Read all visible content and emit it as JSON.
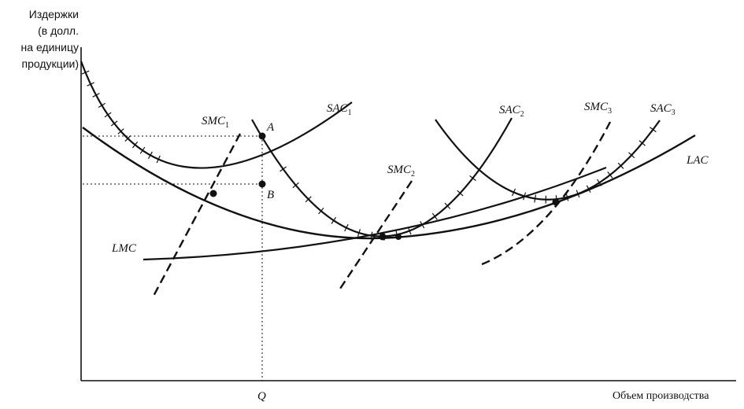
{
  "axes": {
    "y_label_lines": [
      "Издержки",
      "(в долл.",
      "на единицу",
      "продукции)"
    ],
    "x_label": "Объем производства",
    "q_tick": "Q"
  },
  "curves": {
    "lac": "LAC",
    "lmc": "LMC",
    "sac1": "SAC",
    "sac2": "SAC",
    "sac3": "SAC",
    "smc1": "SMC",
    "smc2": "SMC",
    "smc3": "SMC",
    "sub1": "1",
    "sub2": "2",
    "sub3": "3"
  },
  "points": {
    "a": "A",
    "b": "B"
  },
  "colors": {
    "ink": "#111111",
    "background": "#ffffff"
  }
}
